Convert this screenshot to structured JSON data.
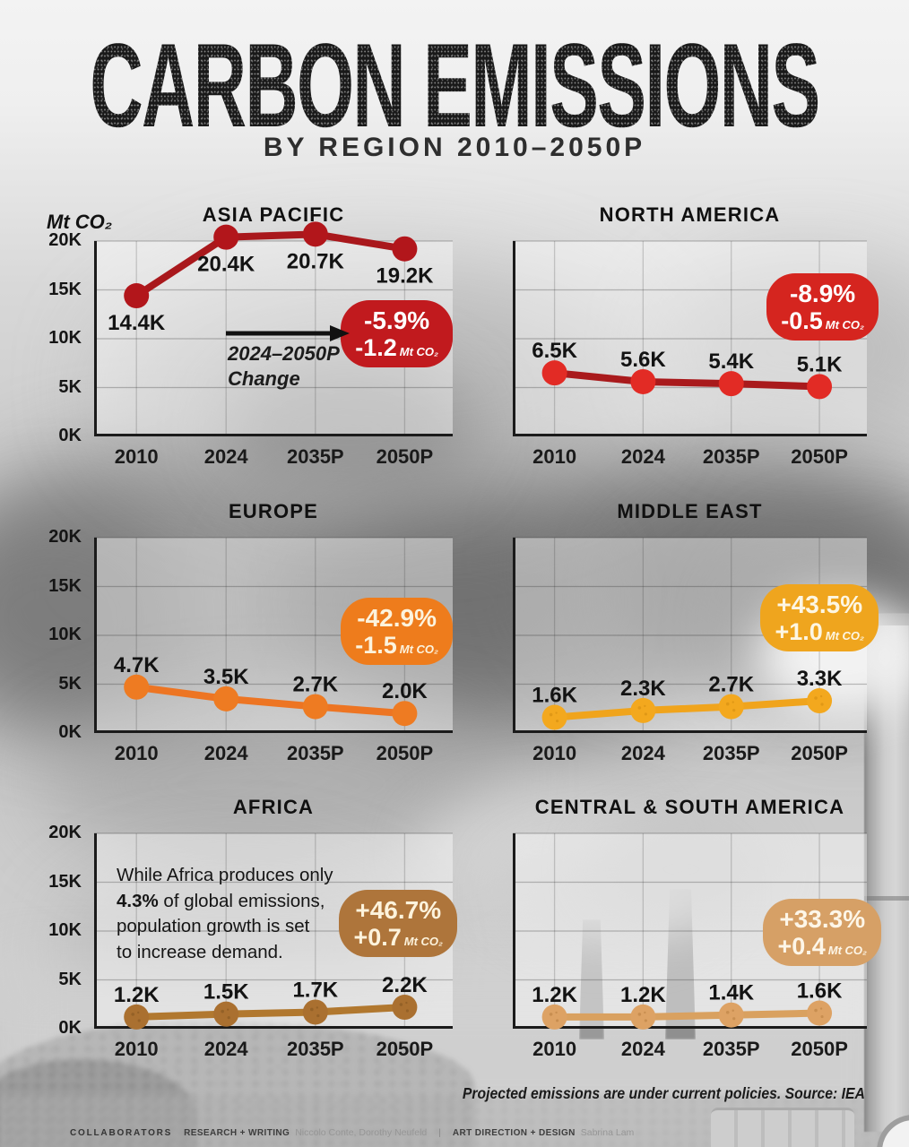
{
  "title": "CARBON EMISSIONS",
  "subtitle": "BY REGION 2010–2050P",
  "unit_label": "Mt CO₂",
  "footnote": "Projected emissions are under current policies. Source: IEA",
  "footer": {
    "collaborators_label": "COLLABORATORS",
    "research_label": "RESEARCH + WRITING",
    "research_names": "Niccolo Conte, Dorothy Neufeld",
    "separator": "|",
    "design_label": "ART DIRECTION + DESIGN",
    "design_names": "Sabrina Lam"
  },
  "asia_annotation": {
    "line1": "2024–2050P",
    "line2": "Change"
  },
  "africa_note": {
    "line1": "While Africa produces only",
    "bold": "4.3%",
    "line2_rest": " of global emissions,",
    "line3": "population growth is set",
    "line4": "to increase demand."
  },
  "axis": {
    "y_ticks": [
      "20K",
      "15K",
      "10K",
      "5K",
      "0K"
    ],
    "x_labels": [
      "2010",
      "2024",
      "2035P",
      "2050P"
    ],
    "ylim": [
      0,
      20000
    ],
    "grid": true
  },
  "chart_data": [
    {
      "type": "line",
      "title": "ASIA PACIFIC",
      "categories": [
        "2010",
        "2024",
        "2035P",
        "2050P"
      ],
      "values_mt": [
        14400,
        20400,
        20700,
        19200
      ],
      "point_labels": [
        "14.4K",
        "20.4K",
        "20.7K",
        "19.2K"
      ],
      "change": {
        "percent": "-5.9%",
        "absolute": "-1.2",
        "unit": "Mt CO₂"
      },
      "line_color": "#a9181c",
      "dot_color": "#b2161b",
      "badge_color": "#c11a1e",
      "badge_text": "#ffffff",
      "label_side": "below",
      "speckle": "#7c0f12"
    },
    {
      "type": "line",
      "title": "NORTH AMERICA",
      "categories": [
        "2010",
        "2024",
        "2035P",
        "2050P"
      ],
      "values_mt": [
        6500,
        5600,
        5400,
        5100
      ],
      "point_labels": [
        "6.5K",
        "5.6K",
        "5.4K",
        "5.1K"
      ],
      "change": {
        "percent": "-8.9%",
        "absolute": "-0.5",
        "unit": "Mt CO₂"
      },
      "line_color": "#a91a1c",
      "dot_color": "#e22b25",
      "badge_color": "#d5251f",
      "badge_text": "#ffffff",
      "label_side": "above",
      "speckle": "#a21315"
    },
    {
      "type": "line",
      "title": "EUROPE",
      "categories": [
        "2010",
        "2024",
        "2035P",
        "2050P"
      ],
      "values_mt": [
        4700,
        3500,
        2700,
        2000
      ],
      "point_labels": [
        "4.7K",
        "3.5K",
        "2.7K",
        "2.0K"
      ],
      "change": {
        "percent": "-42.9%",
        "absolute": "-1.5",
        "unit": "Mt CO₂"
      },
      "line_color": "#ed7523",
      "dot_color": "#ee7b22",
      "badge_color": "#ee7c1c",
      "badge_text": "#fcf3dd",
      "label_side": "above",
      "speckle": "#b54f0e"
    },
    {
      "type": "line",
      "title": "MIDDLE EAST",
      "categories": [
        "2010",
        "2024",
        "2035P",
        "2050P"
      ],
      "values_mt": [
        1600,
        2300,
        2700,
        3300
      ],
      "point_labels": [
        "1.6K",
        "2.3K",
        "2.7K",
        "3.3K"
      ],
      "change": {
        "percent": "+43.5%",
        "absolute": "+1.0",
        "unit": "Mt CO₂"
      },
      "line_color": "#f0a41c",
      "dot_color": "#f3a81e",
      "badge_color": "#efa51e",
      "badge_text": "#fdf6e3",
      "label_side": "above",
      "speckle": "#bd7a08"
    },
    {
      "type": "line",
      "title": "AFRICA",
      "categories": [
        "2010",
        "2024",
        "2035P",
        "2050P"
      ],
      "values_mt": [
        1200,
        1500,
        1700,
        2200
      ],
      "point_labels": [
        "1.2K",
        "1.5K",
        "1.7K",
        "2.2K"
      ],
      "change": {
        "percent": "+46.7%",
        "absolute": "+0.7",
        "unit": "Mt CO₂"
      },
      "line_color": "#b1782f",
      "dot_color": "#aa7030",
      "badge_color": "#ae753b",
      "badge_text": "#fdf3dc",
      "label_side": "above",
      "speckle": "#6e4418"
    },
    {
      "type": "line",
      "title": "CENTRAL & SOUTH AMERICA",
      "categories": [
        "2010",
        "2024",
        "2035P",
        "2050P"
      ],
      "values_mt": [
        1200,
        1200,
        1400,
        1600
      ],
      "point_labels": [
        "1.2K",
        "1.2K",
        "1.4K",
        "1.6K"
      ],
      "change": {
        "percent": "+33.3%",
        "absolute": "+0.4",
        "unit": "Mt CO₂"
      },
      "line_color": "#d9a160",
      "dot_color": "#dda264",
      "badge_color": "#d6a066",
      "badge_text": "#fdf6e8",
      "label_side": "above",
      "speckle": "#a06a2c"
    }
  ]
}
